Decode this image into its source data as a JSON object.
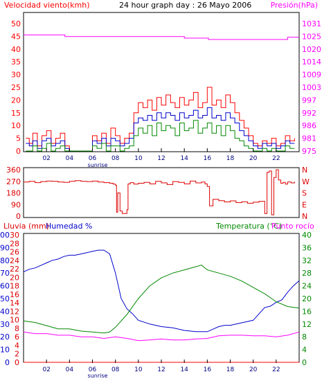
{
  "chart_data": [
    {
      "id": "wind",
      "type": "line",
      "title": "24 hour graph day : 26 Mayo 2006",
      "ylabel_left": "Velocidad viento(kmh)",
      "ylabel_right": "Presión(hPa)",
      "ylim_left": [
        0,
        50
      ],
      "yticks_left": [
        "0",
        "5",
        "10",
        "15",
        "20",
        "25",
        "30",
        "35",
        "40",
        "45",
        "50"
      ],
      "ylim_right": [
        975,
        1031
      ],
      "yticks_right": [
        "975",
        "981",
        "986",
        "992",
        "997",
        "1003",
        "1009",
        "1014",
        "1020",
        "1025",
        "1031"
      ],
      "xlim": [
        0,
        24
      ],
      "xticks": [
        "02",
        "04",
        "06",
        "08",
        "10",
        "12",
        "14",
        "16",
        "18",
        "20",
        "22"
      ],
      "annotation": "sunrise",
      "grid": false,
      "series": [
        {
          "role": "gust",
          "color": "#ff0000",
          "axis": "left",
          "x": [
            0.2,
            0.5,
            0.8,
            1.2,
            1.6,
            2,
            2.4,
            2.8,
            3.2,
            3.6,
            4,
            4.4,
            4.8,
            5.2,
            5.6,
            6,
            6.4,
            6.8,
            7.2,
            7.6,
            8,
            8.4,
            8.8,
            9.2,
            9.6,
            10,
            10.4,
            10.8,
            11.2,
            11.6,
            12,
            12.4,
            12.8,
            13.2,
            13.6,
            14,
            14.4,
            14.8,
            15.2,
            15.6,
            16,
            16.4,
            16.8,
            17.2,
            17.6,
            18,
            18.4,
            18.8,
            19.2,
            19.6,
            20,
            20.4,
            20.8,
            21.2,
            21.6,
            22,
            22.4,
            22.8,
            23.2,
            23.6
          ],
          "y": [
            5,
            3,
            7,
            2,
            6,
            8,
            3,
            5,
            7,
            2,
            0,
            0,
            0,
            0,
            0,
            6,
            4,
            7,
            3,
            9,
            6,
            3,
            5,
            7,
            15,
            19,
            17,
            20,
            16,
            21,
            18,
            22,
            19,
            17,
            21,
            18,
            20,
            23,
            17,
            19,
            25,
            18,
            20,
            17,
            22,
            19,
            15,
            12,
            9,
            6,
            3,
            2,
            4,
            3,
            5,
            2,
            3,
            6,
            4,
            5
          ]
        },
        {
          "role": "average",
          "color": "#0000cc",
          "axis": "left",
          "x": [
            0.2,
            0.5,
            0.8,
            1.2,
            1.6,
            2,
            2.4,
            2.8,
            3.2,
            3.6,
            4,
            4.4,
            4.8,
            5.2,
            5.6,
            6,
            6.4,
            6.8,
            7.2,
            7.6,
            8,
            8.4,
            8.8,
            9.2,
            9.6,
            10,
            10.4,
            10.8,
            11.2,
            11.6,
            12,
            12.4,
            12.8,
            13.2,
            13.6,
            14,
            14.4,
            14.8,
            15.2,
            15.6,
            16,
            16.4,
            16.8,
            17.2,
            17.6,
            18,
            18.4,
            18.8,
            19.2,
            19.6,
            20,
            20.4,
            20.8,
            21.2,
            21.6,
            22,
            22.4,
            22.8,
            23.2,
            23.6
          ],
          "y": [
            3,
            2,
            4,
            1,
            4,
            5,
            2,
            3,
            4,
            1,
            0,
            0,
            0,
            0,
            0,
            4,
            3,
            5,
            2,
            5,
            4,
            2,
            3,
            5,
            11,
            13,
            12,
            14,
            12,
            15,
            13,
            15,
            14,
            12,
            15,
            13,
            14,
            16,
            13,
            14,
            17,
            13,
            14,
            12,
            15,
            13,
            11,
            8,
            6,
            4,
            2,
            1,
            3,
            2,
            3,
            1,
            2,
            4,
            3,
            3
          ]
        },
        {
          "role": "minimum",
          "color": "#008800",
          "axis": "left",
          "x": [
            0.2,
            0.5,
            0.8,
            1.2,
            1.6,
            2,
            2.4,
            2.8,
            3.2,
            3.6,
            4,
            4.4,
            4.8,
            5.2,
            5.6,
            6,
            6.4,
            6.8,
            7.2,
            7.6,
            8,
            8.4,
            8.8,
            9.2,
            9.6,
            10,
            10.4,
            10.8,
            11.2,
            11.6,
            12,
            12.4,
            12.8,
            13.2,
            13.6,
            14,
            14.4,
            14.8,
            15.2,
            15.6,
            16,
            16.4,
            16.8,
            17.2,
            17.6,
            18,
            18.4,
            18.8,
            19.2,
            19.6,
            20,
            20.4,
            20.8,
            21.2,
            21.6,
            22,
            22.4,
            22.8,
            23.2,
            23.6
          ],
          "y": [
            0,
            0,
            2,
            0,
            1,
            3,
            0,
            1,
            2,
            0,
            0,
            0,
            0,
            0,
            0,
            2,
            1,
            3,
            0,
            2,
            2,
            0,
            1,
            2,
            6,
            9,
            7,
            10,
            6,
            11,
            8,
            10,
            9,
            6,
            11,
            8,
            9,
            12,
            7,
            9,
            11,
            7,
            10,
            6,
            10,
            8,
            5,
            4,
            2,
            1,
            0,
            0,
            1,
            0,
            1,
            0,
            0,
            2,
            1,
            1
          ]
        },
        {
          "role": "pressure",
          "color": "#ff00ff",
          "axis": "right",
          "x": [
            0,
            3.5,
            3.6,
            13.9,
            14,
            16,
            16.1,
            22.9,
            23,
            24
          ],
          "y": [
            1026,
            1026,
            1025.3,
            1025.3,
            1024.6,
            1024.6,
            1024,
            1024,
            1025,
            1025
          ]
        }
      ]
    },
    {
      "id": "direction",
      "type": "line",
      "ylabel_left": "",
      "ylim_left": [
        0,
        360
      ],
      "yticks_left": [
        "0",
        "90",
        "180",
        "270",
        "360"
      ],
      "yticks_right": [
        "N",
        "E",
        "S",
        "W",
        "N"
      ],
      "xlim": [
        0,
        24
      ],
      "grid": false,
      "series": [
        {
          "role": "direction",
          "color": "#dd0000",
          "x": [
            0,
            0.5,
            1,
            1.5,
            2,
            2.5,
            3,
            3.5,
            4,
            4.5,
            5,
            5.5,
            6,
            6.5,
            7,
            7.5,
            7.8,
            8,
            8.1,
            8.2,
            8.4,
            8.6,
            9,
            9.1,
            9.3,
            9.6,
            10,
            10.5,
            11,
            11.5,
            12,
            12.5,
            13,
            13.5,
            14,
            14.5,
            15,
            15.5,
            15.8,
            16,
            16.2,
            16.5,
            17,
            17.5,
            18,
            18.5,
            19,
            19.5,
            20,
            20.5,
            21,
            21.2,
            21.4,
            21.6,
            21.8,
            22,
            22.2,
            22.4,
            22.6,
            22.8,
            23,
            23.3,
            23.6
          ],
          "y": [
            265,
            270,
            260,
            268,
            272,
            270,
            265,
            262,
            270,
            275,
            270,
            268,
            272,
            265,
            260,
            255,
            248,
            240,
            30,
            180,
            40,
            20,
            50,
            250,
            260,
            248,
            255,
            262,
            250,
            270,
            258,
            245,
            268,
            262,
            250,
            272,
            258,
            265,
            250,
            230,
            80,
            130,
            120,
            110,
            118,
            105,
            112,
            100,
            108,
            115,
            20,
            340,
            350,
            10,
            300,
            360,
            280,
            255,
            262,
            248,
            265,
            258,
            268
          ]
        }
      ]
    },
    {
      "id": "humidity-temperature",
      "type": "line",
      "ylabel_left": "Lluvia (mm)",
      "ylabel_left2": "Humedad %",
      "ylabel_right": "Temperatura (°C)",
      "ylabel_right2": "Punto rocío",
      "yticks_rain": [
        "0",
        "2",
        "4",
        "6",
        "8",
        "10",
        "12",
        "14",
        "16",
        "18",
        "20",
        "22",
        "24",
        "26",
        "28",
        "30"
      ],
      "ylim_humidity": [
        0,
        100
      ],
      "yticks_humidity": [
        "0",
        "10",
        "20",
        "30",
        "40",
        "50",
        "60",
        "70",
        "80",
        "90",
        "100"
      ],
      "ylim_temp": [
        0,
        40
      ],
      "yticks_temp": [
        "0",
        "4",
        "8",
        "12",
        "16",
        "20",
        "24",
        "28",
        "32",
        "36",
        "40"
      ],
      "xlim": [
        0,
        24
      ],
      "xticks": [
        "02",
        "04",
        "06",
        "08",
        "10",
        "12",
        "14",
        "16",
        "18",
        "20",
        "22"
      ],
      "annotation": "sunrise",
      "grid": false,
      "series": [
        {
          "role": "humidity",
          "color": "#0000cc",
          "axis": "humidity",
          "x": [
            0,
            0.5,
            1,
            1.5,
            2,
            2.5,
            3,
            3.5,
            4,
            4.5,
            5,
            5.5,
            6,
            6.5,
            7,
            7.5,
            8,
            8.5,
            9,
            9.5,
            10,
            11,
            12,
            13,
            14,
            15,
            16,
            16.5,
            17,
            17.5,
            18,
            19,
            20,
            20.5,
            21,
            21.5,
            22,
            22.5,
            23,
            23.5,
            24
          ],
          "y": [
            71,
            73,
            74,
            76,
            78,
            80,
            81,
            83,
            84,
            84,
            85,
            86,
            87,
            88,
            88,
            85,
            70,
            50,
            42,
            38,
            33,
            30,
            28,
            27,
            25,
            24,
            24,
            26,
            28,
            29,
            29,
            31,
            33,
            38,
            43,
            44,
            47,
            49,
            55,
            60,
            64
          ]
        },
        {
          "role": "temperature",
          "color": "#008800",
          "axis": "temp",
          "x": [
            0,
            1,
            2,
            3,
            4,
            5,
            6,
            7,
            7.5,
            8,
            9,
            10,
            11,
            12,
            13,
            14,
            15,
            15.5,
            16,
            17,
            18,
            19,
            20,
            21,
            22,
            23,
            24
          ],
          "y": [
            13,
            12.5,
            11.5,
            10.5,
            10.5,
            9.8,
            9.5,
            9.2,
            9.5,
            11,
            15,
            20,
            24,
            26.5,
            28,
            29,
            30,
            30.5,
            29,
            28,
            27,
            25.5,
            23.5,
            21.5,
            19,
            17.5,
            17
          ]
        },
        {
          "role": "dewpoint",
          "color": "#ff00ff",
          "axis": "temp",
          "x": [
            0,
            1,
            2,
            3,
            4,
            5,
            6,
            7,
            8,
            9,
            10,
            11,
            12,
            13,
            14,
            15,
            16,
            17,
            18,
            19,
            20,
            21,
            22,
            23,
            24
          ],
          "y": [
            9.5,
            9,
            9,
            8.5,
            8.5,
            8,
            8,
            7.5,
            8,
            7.5,
            6.8,
            7,
            7.3,
            7,
            7,
            7.3,
            7.5,
            8.3,
            8.5,
            8.5,
            8.3,
            8.3,
            8,
            8.5,
            9.5
          ]
        },
        {
          "role": "rain",
          "color": "#ff0000",
          "axis": "humidity",
          "x": [
            0,
            24
          ],
          "y": [
            0,
            0
          ]
        }
      ]
    }
  ]
}
